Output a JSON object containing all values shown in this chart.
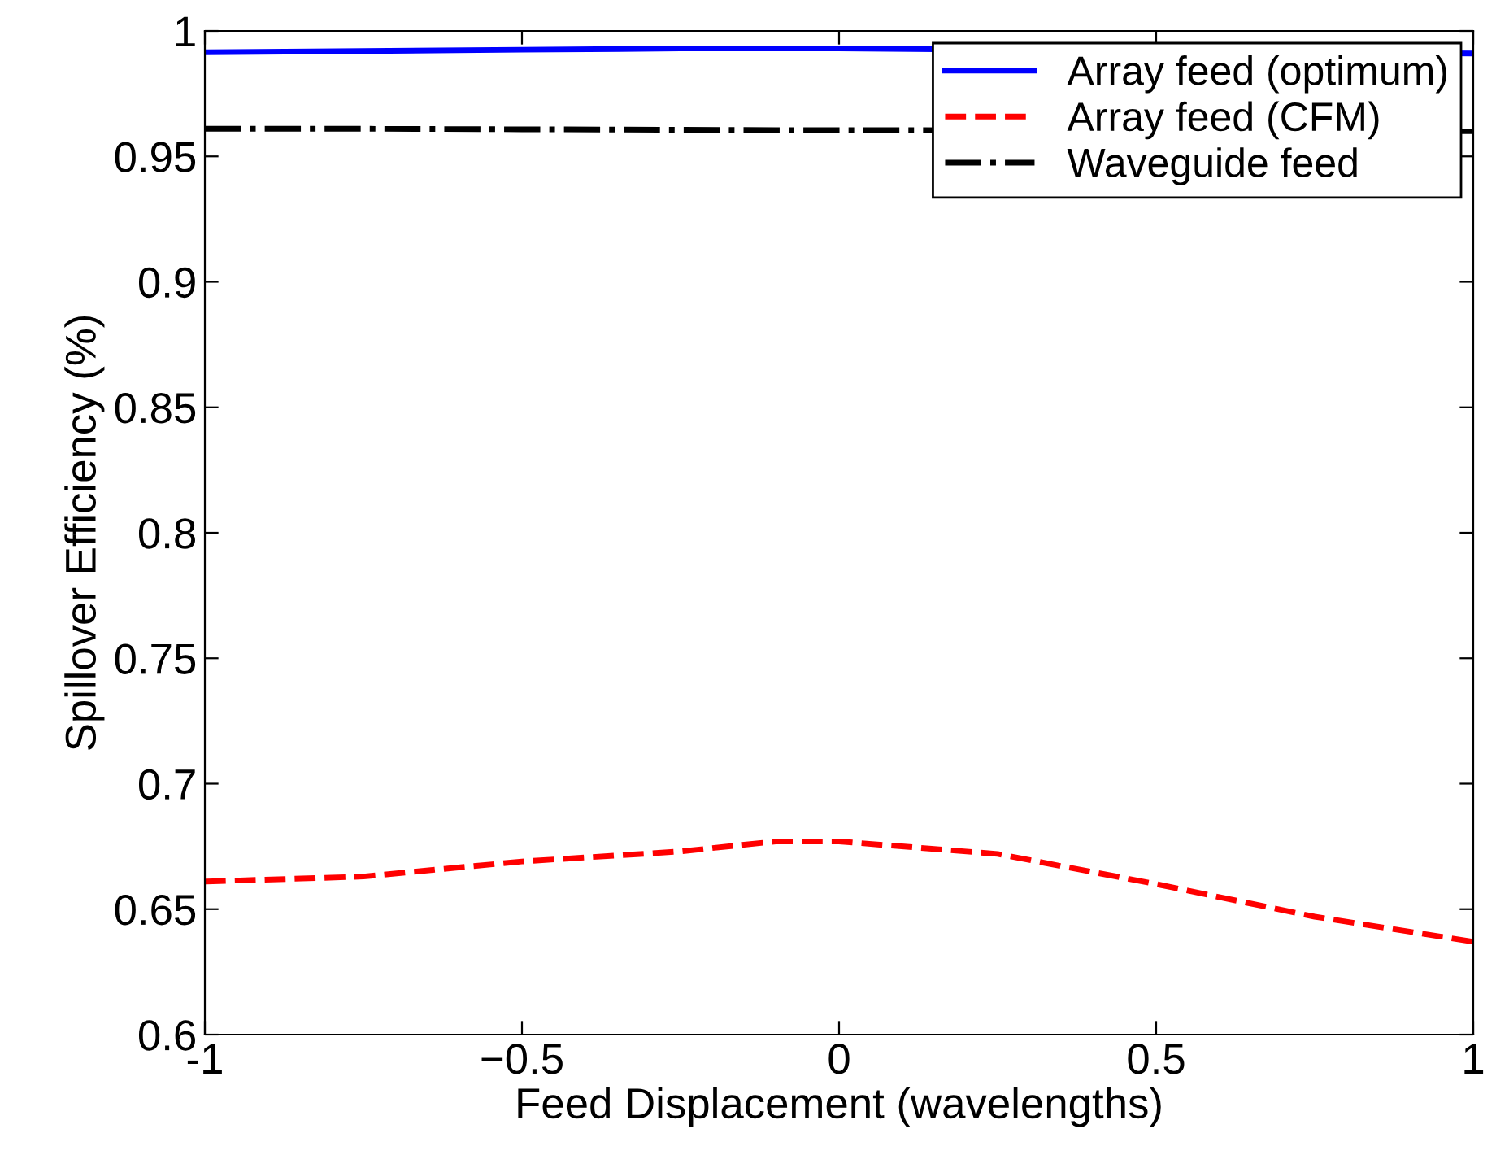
{
  "chart_data": {
    "type": "line",
    "xlabel": "Feed Displacement (wavelengths)",
    "ylabel": "Spillover Efficiency (%)",
    "x": [
      -1,
      -0.75,
      -0.5,
      -0.25,
      -0.1,
      0,
      0.25,
      0.5,
      0.75,
      1
    ],
    "series": [
      {
        "name": "Array feed (optimum)",
        "color": "#0000ff",
        "line_style": "solid",
        "x": [
          -1,
          -0.75,
          -0.5,
          -0.25,
          -0.1,
          0,
          1
        ],
        "values": [
          0.9915,
          0.992,
          0.9925,
          0.993,
          0.993,
          0.993,
          0.991
        ]
      },
      {
        "name": "Array feed (CFM)",
        "color": "#ff0000",
        "line_style": "dashed",
        "values": [
          0.661,
          0.663,
          0.669,
          0.673,
          0.677,
          0.677,
          0.672,
          0.66,
          0.647,
          0.637
        ]
      },
      {
        "name": "Waveguide feed",
        "color": "#000000",
        "line_style": "dashdot",
        "x": [
          -1,
          -0.75,
          -0.5,
          -0.25,
          -0.1,
          0,
          1
        ],
        "values": [
          0.961,
          0.961,
          0.9608,
          0.9606,
          0.9605,
          0.9605,
          0.96
        ]
      }
    ],
    "xlim": [
      -1,
      1
    ],
    "xticks": [
      -1,
      {
        "value": -0.5,
        "label": "−0.5"
      },
      0,
      0.5,
      1
    ],
    "ylim": [
      0.6,
      1
    ],
    "yticks": [
      0.6,
      0.65,
      0.7,
      0.75,
      0.8,
      0.85,
      0.9,
      0.95,
      1
    ],
    "grid": false,
    "legend": "top right"
  }
}
